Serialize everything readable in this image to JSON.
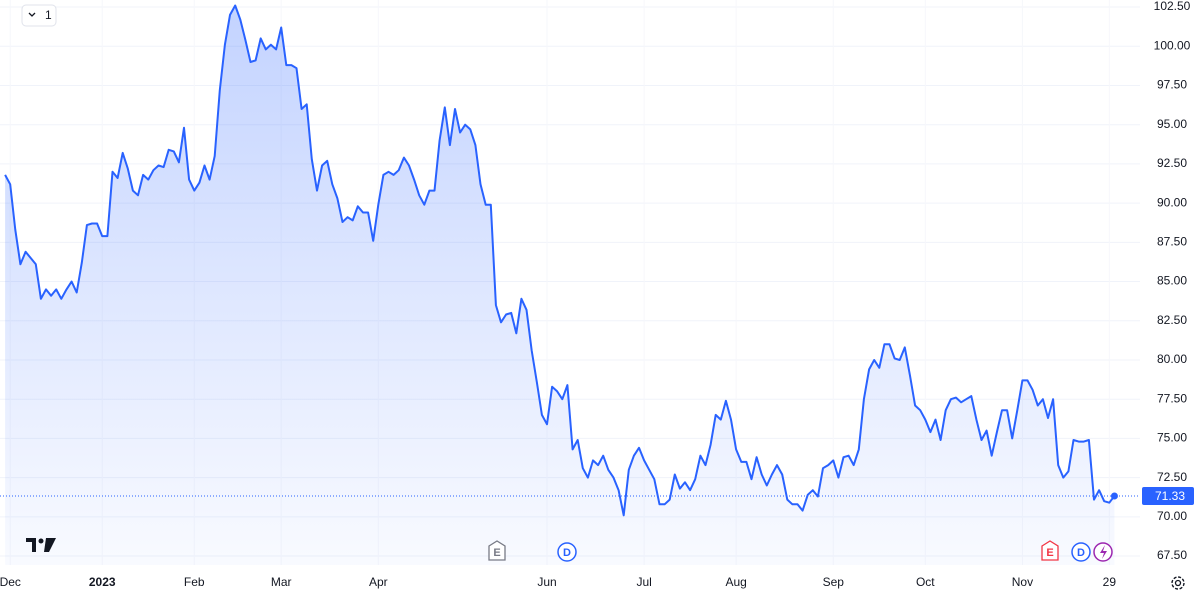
{
  "chart_data": {
    "type": "area",
    "interval_button": "1",
    "color": "#2962ff",
    "values": [
      91.8,
      91.2,
      88.3,
      86.1,
      86.9,
      86.5,
      86.1,
      83.9,
      84.5,
      84.1,
      84.5,
      83.9,
      84.5,
      85.0,
      84.3,
      86.2,
      88.6,
      88.7,
      88.7,
      87.9,
      87.9,
      92.0,
      91.6,
      93.2,
      92.2,
      90.8,
      90.5,
      91.8,
      91.5,
      92.1,
      92.4,
      92.3,
      93.4,
      93.3,
      92.6,
      94.8,
      91.5,
      90.8,
      91.3,
      92.4,
      91.5,
      93.0,
      97.2,
      100.1,
      102.0,
      102.6,
      101.7,
      100.4,
      99.0,
      99.1,
      100.5,
      99.8,
      100.1,
      99.8,
      101.2,
      98.8,
      98.8,
      98.6,
      96.0,
      96.3,
      92.8,
      90.8,
      92.4,
      92.7,
      91.2,
      90.3,
      88.8,
      89.1,
      88.9,
      89.8,
      89.4,
      89.4,
      87.6,
      89.9,
      91.8,
      92.0,
      91.8,
      92.1,
      92.9,
      92.4,
      91.5,
      90.5,
      89.9,
      90.8,
      90.8,
      94.0,
      96.1,
      93.7,
      96.0,
      94.5,
      95.0,
      94.7,
      93.7,
      91.2,
      89.9,
      89.9,
      83.5,
      82.4,
      82.9,
      83.0,
      81.7,
      83.9,
      83.2,
      80.6,
      78.6,
      76.5,
      75.9,
      78.3,
      78.0,
      77.5,
      78.4,
      74.3,
      74.9,
      73.1,
      72.5,
      73.6,
      73.3,
      73.9,
      73.0,
      72.5,
      71.7,
      70.1,
      73.0,
      73.9,
      74.4,
      73.6,
      73.0,
      72.4,
      70.8,
      70.8,
      71.1,
      72.7,
      71.8,
      72.2,
      71.7,
      72.4,
      73.9,
      73.3,
      74.6,
      76.5,
      76.2,
      77.4,
      76.2,
      74.3,
      73.5,
      73.5,
      72.4,
      73.8,
      72.7,
      72.0,
      72.7,
      73.3,
      72.7,
      71.1,
      70.8,
      70.8,
      70.4,
      71.4,
      71.7,
      71.3,
      73.1,
      73.3,
      73.6,
      72.5,
      73.8,
      73.9,
      73.3,
      74.3,
      77.5,
      79.4,
      80.0,
      79.5,
      81.0,
      81.0,
      80.1,
      80.0,
      80.8,
      79.0,
      77.1,
      76.8,
      76.2,
      75.4,
      76.2,
      74.9,
      76.8,
      77.5,
      77.6,
      77.3,
      77.5,
      77.7,
      76.2,
      74.9,
      75.5,
      73.9,
      75.4,
      76.8,
      76.8,
      75.0,
      76.8,
      78.7,
      78.7,
      78.1,
      77.1,
      77.5,
      76.3,
      77.5,
      73.3,
      72.5,
      72.9,
      74.9,
      74.8,
      74.8,
      74.9,
      71.1,
      71.7,
      71.0,
      70.9,
      71.33
    ],
    "xlim": [
      -1,
      222
    ],
    "xticks": [
      {
        "value": 1,
        "label": "Dec"
      },
      {
        "value": 19,
        "label": "2023"
      },
      {
        "value": 37,
        "label": "Feb"
      },
      {
        "value": 54,
        "label": "Mar"
      },
      {
        "value": 73,
        "label": "Apr"
      },
      {
        "value": 106,
        "label": "Jun"
      },
      {
        "value": 125,
        "label": "Jul"
      },
      {
        "value": 143,
        "label": "Aug"
      },
      {
        "value": 162,
        "label": "Sep"
      },
      {
        "value": 180,
        "label": "Oct"
      },
      {
        "value": 199,
        "label": "Nov"
      },
      {
        "value": 216,
        "label": "29"
      }
    ],
    "ylim": [
      66.93,
      102.95
    ],
    "yticks": [
      {
        "value": 67.5,
        "label": "67.50"
      },
      {
        "value": 70,
        "label": "70.00"
      },
      {
        "value": 72.5,
        "label": "72.50"
      },
      {
        "value": 75,
        "label": "75.00"
      },
      {
        "value": 77.5,
        "label": "77.50"
      },
      {
        "value": 80,
        "label": "80.00"
      },
      {
        "value": 82.5,
        "label": "82.50"
      },
      {
        "value": 85,
        "label": "85.00"
      },
      {
        "value": 87.5,
        "label": "87.50"
      },
      {
        "value": 90,
        "label": "90.00"
      },
      {
        "value": 92.5,
        "label": "92.50"
      },
      {
        "value": 95,
        "label": "95.00"
      },
      {
        "value": 97.5,
        "label": "97.50"
      },
      {
        "value": 100,
        "label": "100.00"
      },
      {
        "value": 102.5,
        "label": "102.50"
      }
    ],
    "grid": true,
    "event_markers": [
      "E",
      "D",
      "E",
      "D"
    ]
  }
}
